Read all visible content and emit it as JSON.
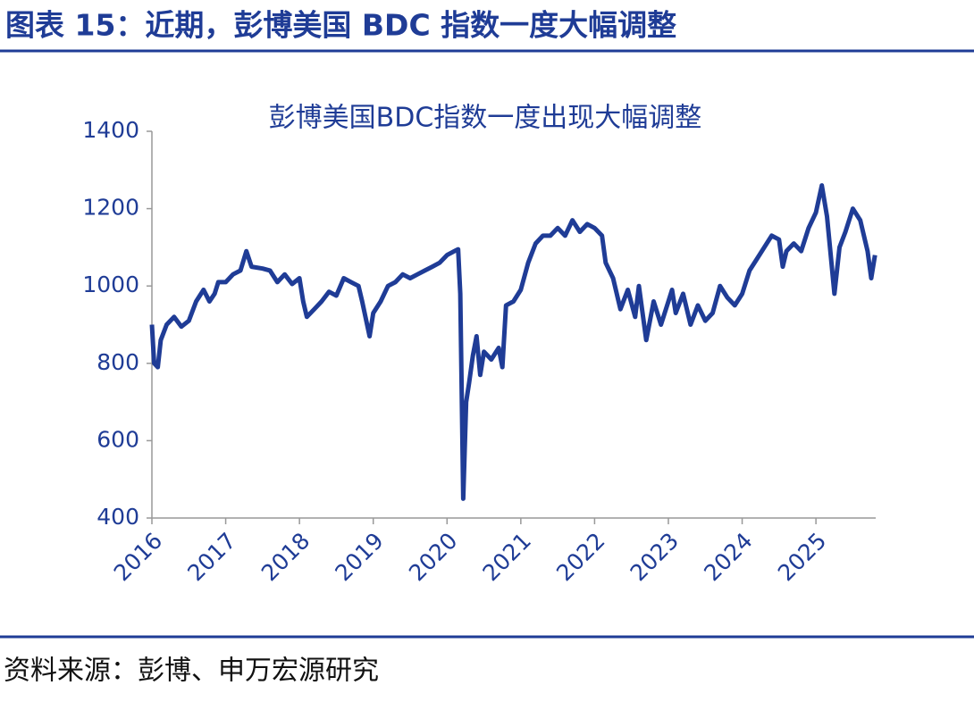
{
  "header": {
    "title": "图表 15：近期，彭博美国 BDC 指数一度大幅调整"
  },
  "chart_data": {
    "type": "line",
    "title": "彭博美国BDC指数一度出现大幅调整",
    "color": "#1f3c96",
    "x": [
      2016.0,
      2016.03,
      2016.08,
      2016.12,
      2016.2,
      2016.3,
      2016.4,
      2016.5,
      2016.6,
      2016.7,
      2016.78,
      2016.85,
      2016.9,
      2017.0,
      2017.1,
      2017.2,
      2017.28,
      2017.35,
      2017.5,
      2017.6,
      2017.7,
      2017.8,
      2017.9,
      2018.0,
      2018.05,
      2018.1,
      2018.2,
      2018.3,
      2018.4,
      2018.5,
      2018.6,
      2018.7,
      2018.8,
      2018.85,
      2018.95,
      2019.0,
      2019.1,
      2019.2,
      2019.3,
      2019.4,
      2019.5,
      2019.6,
      2019.7,
      2019.8,
      2019.9,
      2020.0,
      2020.1,
      2020.15,
      2020.18,
      2020.22,
      2020.26,
      2020.3,
      2020.35,
      2020.4,
      2020.45,
      2020.5,
      2020.6,
      2020.7,
      2020.75,
      2020.8,
      2020.9,
      2021.0,
      2021.1,
      2021.2,
      2021.3,
      2021.4,
      2021.5,
      2021.6,
      2021.7,
      2021.8,
      2021.9,
      2022.0,
      2022.1,
      2022.15,
      2022.25,
      2022.35,
      2022.45,
      2022.55,
      2022.6,
      2022.7,
      2022.8,
      2022.9,
      2023.0,
      2023.05,
      2023.1,
      2023.2,
      2023.3,
      2023.4,
      2023.5,
      2023.6,
      2023.7,
      2023.8,
      2023.9,
      2024.0,
      2024.1,
      2024.2,
      2024.3,
      2024.4,
      2024.5,
      2024.55,
      2024.6,
      2024.7,
      2024.8,
      2024.9,
      2025.0,
      2025.08,
      2025.15,
      2025.25,
      2025.32,
      2025.4,
      2025.5,
      2025.6,
      2025.7,
      2025.75,
      2025.8
    ],
    "values": [
      900,
      800,
      790,
      860,
      900,
      920,
      895,
      910,
      960,
      990,
      960,
      980,
      1010,
      1010,
      1030,
      1040,
      1090,
      1050,
      1045,
      1040,
      1010,
      1030,
      1005,
      1020,
      960,
      920,
      940,
      960,
      985,
      975,
      1020,
      1010,
      1000,
      960,
      870,
      930,
      960,
      1000,
      1010,
      1030,
      1020,
      1030,
      1040,
      1050,
      1060,
      1080,
      1090,
      1095,
      980,
      450,
      700,
      750,
      820,
      870,
      770,
      830,
      810,
      840,
      790,
      950,
      960,
      990,
      1060,
      1110,
      1130,
      1130,
      1150,
      1130,
      1170,
      1140,
      1160,
      1150,
      1130,
      1060,
      1020,
      940,
      990,
      920,
      1000,
      860,
      960,
      900,
      960,
      990,
      930,
      980,
      900,
      950,
      910,
      930,
      1000,
      970,
      950,
      980,
      1040,
      1070,
      1100,
      1130,
      1120,
      1050,
      1090,
      1110,
      1090,
      1150,
      1190,
      1260,
      1180,
      980,
      1100,
      1140,
      1200,
      1170,
      1090,
      1020,
      1080
    ],
    "xlim": [
      2016,
      2025.81
    ],
    "xticks": [
      2016,
      2017,
      2018,
      2019,
      2020,
      2021,
      2022,
      2023,
      2024,
      2025
    ],
    "ylim": [
      400,
      1400
    ],
    "yticks": [
      400,
      600,
      800,
      1000,
      1200,
      1400
    ]
  },
  "source": "资料来源：彭博、申万宏源研究"
}
